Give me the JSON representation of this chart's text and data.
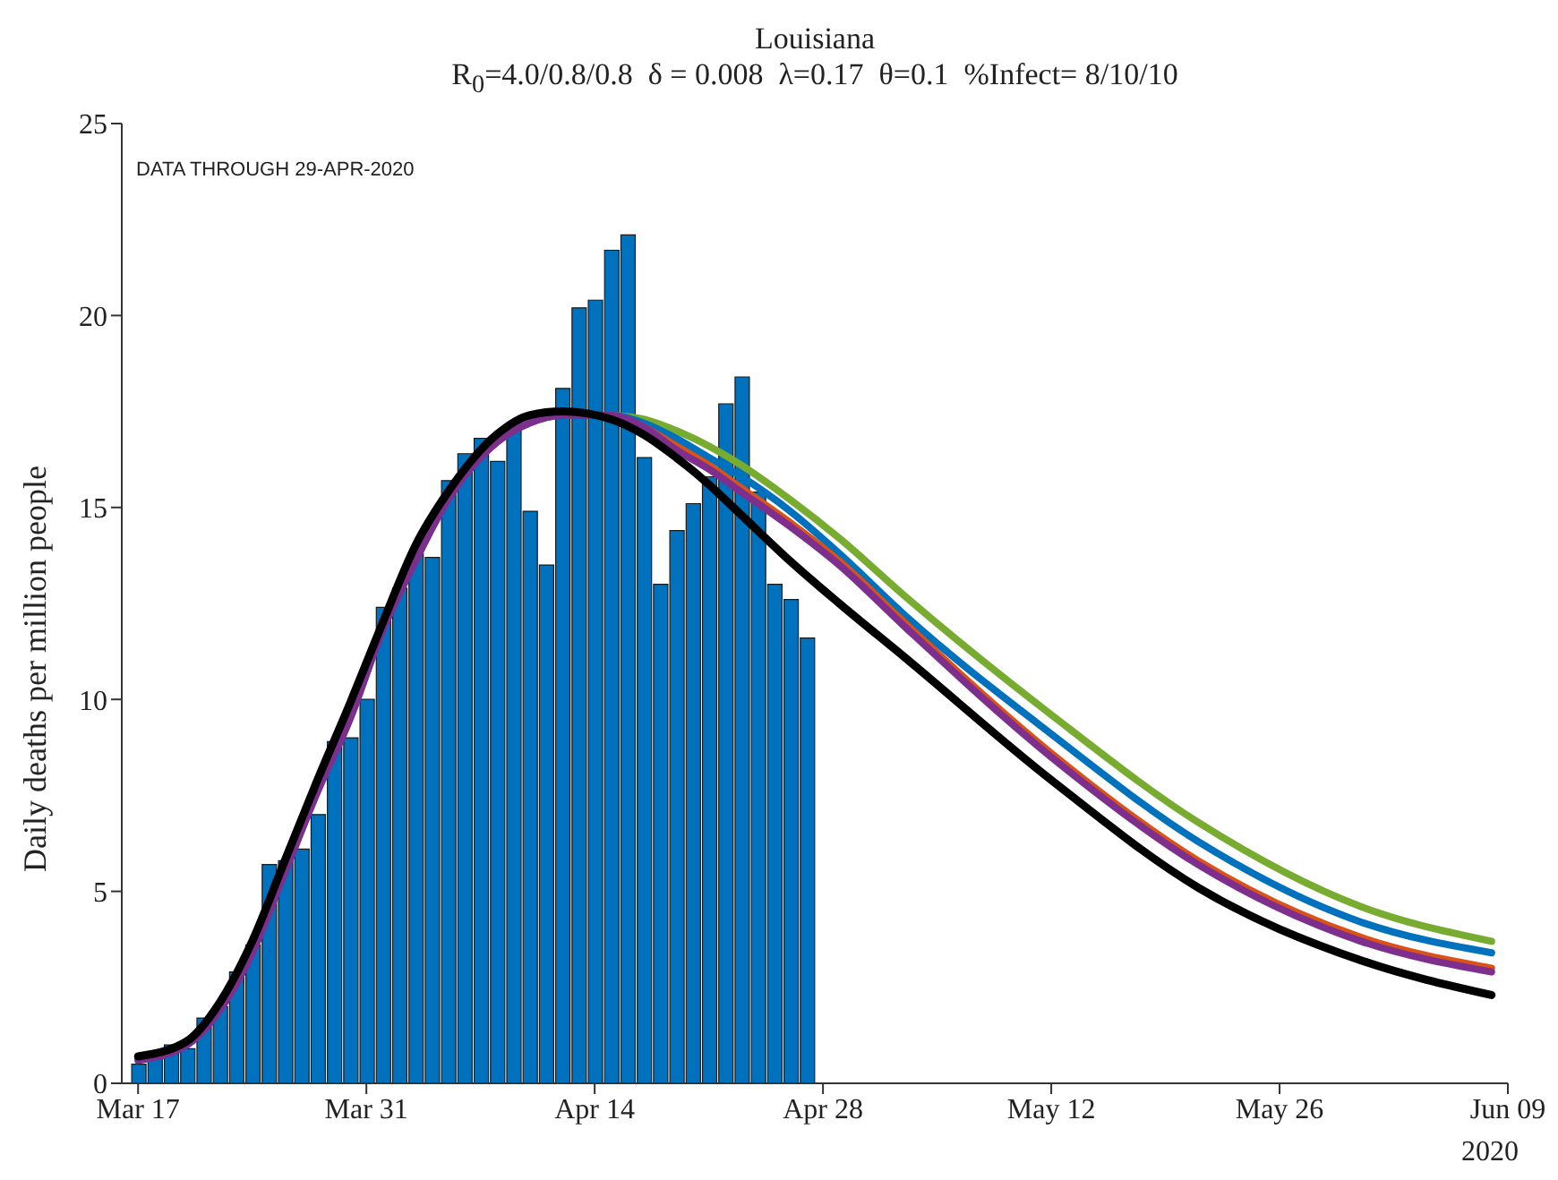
{
  "chart_data": {
    "type": "bar",
    "title": "Louisiana",
    "subtitle": "R$_{0}$=4.0/0.8/0.8  δ = 0.008  λ=0.17  θ=0.1  %Infect= 8/10/10",
    "ylabel": "Daily deaths per million people",
    "annotations": [
      "DATA THROUGH 29-APR-2020",
      "2020"
    ],
    "xlim": [
      "2020-03-16",
      "2020-06-09"
    ],
    "xticks": [
      {
        "value": "2020-03-17",
        "label": "Mar 17"
      },
      {
        "value": "2020-03-31",
        "label": "Mar 31"
      },
      {
        "value": "2020-04-14",
        "label": "Apr 14"
      },
      {
        "value": "2020-04-28",
        "label": "Apr 28"
      },
      {
        "value": "2020-05-12",
        "label": "May 12"
      },
      {
        "value": "2020-05-26",
        "label": "May 26"
      },
      {
        "value": "2020-06-09",
        "label": "Jun 09"
      }
    ],
    "ylim": [
      0,
      25
    ],
    "yticks": [
      0,
      5,
      10,
      15,
      20,
      25
    ],
    "grid": false,
    "legend": false,
    "series": [
      {
        "color": "#0072bd",
        "x": [
          "2020-03-17",
          "2020-03-18",
          "2020-03-19",
          "2020-03-20",
          "2020-03-21",
          "2020-03-22",
          "2020-03-23",
          "2020-03-24",
          "2020-03-25",
          "2020-03-26",
          "2020-03-27",
          "2020-03-28",
          "2020-03-29",
          "2020-03-30",
          "2020-03-31",
          "2020-04-01",
          "2020-04-02",
          "2020-04-03",
          "2020-04-04",
          "2020-04-05",
          "2020-04-06",
          "2020-04-07",
          "2020-04-08",
          "2020-04-09",
          "2020-04-10",
          "2020-04-11",
          "2020-04-12",
          "2020-04-13",
          "2020-04-14",
          "2020-04-15",
          "2020-04-16",
          "2020-04-17",
          "2020-04-18",
          "2020-04-19",
          "2020-04-20",
          "2020-04-21",
          "2020-04-22",
          "2020-04-23",
          "2020-04-24",
          "2020-04-25",
          "2020-04-26",
          "2020-04-27"
        ],
        "values": [
          0.5,
          0.7,
          1.0,
          0.9,
          1.7,
          2.0,
          2.9,
          3.6,
          5.7,
          5.8,
          6.1,
          7.0,
          8.9,
          9.0,
          10.0,
          12.4,
          12.9,
          13.8,
          13.7,
          15.7,
          16.4,
          16.8,
          16.2,
          17.0,
          14.9,
          13.5,
          18.1,
          20.2,
          20.4,
          21.7,
          22.1,
          16.3,
          13.0,
          14.4,
          15.1,
          15.8,
          17.7,
          18.4,
          15.4,
          13.0,
          12.6,
          11.6
        ]
      },
      {
        "type": "line",
        "color": "#77ac30",
        "x": [
          "2020-04-15",
          "2020-04-17",
          "2020-04-19",
          "2020-04-21",
          "2020-04-23",
          "2020-04-26",
          "2020-04-29",
          "2020-05-03",
          "2020-05-12",
          "2020-05-21",
          "2020-05-31",
          "2020-06-08"
        ],
        "values": [
          17.4,
          17.3,
          17.0,
          16.6,
          16.1,
          15.2,
          14.2,
          12.7,
          9.6,
          6.8,
          4.6,
          3.7
        ]
      },
      {
        "type": "line",
        "color": "#0072bd",
        "x": [
          "2020-03-17",
          "2020-03-20",
          "2020-03-22",
          "2020-03-24",
          "2020-03-26",
          "2020-03-28",
          "2020-03-30",
          "2020-04-01",
          "2020-04-03",
          "2020-04-05",
          "2020-04-08",
          "2020-04-10",
          "2020-04-12",
          "2020-04-15",
          "2020-04-17",
          "2020-04-19",
          "2020-04-21",
          "2020-04-23",
          "2020-04-26",
          "2020-04-29",
          "2020-05-03",
          "2020-05-12",
          "2020-05-21",
          "2020-05-31",
          "2020-06-08"
        ],
        "values": [
          0.6,
          1.0,
          1.9,
          3.4,
          5.5,
          7.6,
          9.5,
          11.8,
          13.6,
          15.2,
          16.7,
          17.2,
          17.4,
          17.4,
          17.2,
          16.8,
          16.3,
          15.8,
          14.9,
          13.8,
          12.2,
          9.1,
          6.3,
          4.2,
          3.4
        ]
      },
      {
        "type": "line",
        "color": "#d95319",
        "x": [
          "2020-04-15",
          "2020-04-17",
          "2020-04-19",
          "2020-04-21",
          "2020-04-23",
          "2020-04-26",
          "2020-04-29",
          "2020-05-03",
          "2020-05-12",
          "2020-05-21",
          "2020-05-31",
          "2020-06-08"
        ],
        "values": [
          17.4,
          17.1,
          16.6,
          16.1,
          15.5,
          14.6,
          13.6,
          12.0,
          8.6,
          5.8,
          3.8,
          3.0
        ]
      },
      {
        "type": "line",
        "color": "#7e2f8e",
        "x": [
          "2020-03-17",
          "2020-03-20",
          "2020-03-22",
          "2020-03-24",
          "2020-03-26",
          "2020-03-28",
          "2020-03-30",
          "2020-04-01",
          "2020-04-03",
          "2020-04-05",
          "2020-04-08",
          "2020-04-10",
          "2020-04-12",
          "2020-04-15",
          "2020-04-17",
          "2020-04-19",
          "2020-04-21",
          "2020-04-23",
          "2020-04-26",
          "2020-04-29",
          "2020-05-03",
          "2020-05-12",
          "2020-05-21",
          "2020-05-31",
          "2020-06-08"
        ],
        "values": [
          0.6,
          1.0,
          1.9,
          3.4,
          5.5,
          7.6,
          9.5,
          11.8,
          13.6,
          15.2,
          16.7,
          17.2,
          17.4,
          17.4,
          17.1,
          16.5,
          16.0,
          15.4,
          14.5,
          13.5,
          11.9,
          8.5,
          5.7,
          3.7,
          2.9
        ]
      },
      {
        "type": "line",
        "color": "#000000",
        "x": [
          "2020-03-17",
          "2020-03-20",
          "2020-03-22",
          "2020-03-24",
          "2020-03-26",
          "2020-03-28",
          "2020-03-30",
          "2020-04-01",
          "2020-04-03",
          "2020-04-05",
          "2020-04-08",
          "2020-04-10",
          "2020-04-12",
          "2020-04-15",
          "2020-04-17",
          "2020-04-19",
          "2020-04-21",
          "2020-04-23",
          "2020-04-26",
          "2020-04-29",
          "2020-05-03",
          "2020-05-12",
          "2020-05-21",
          "2020-05-31",
          "2020-06-08"
        ],
        "values": [
          0.7,
          1.1,
          2.1,
          3.7,
          5.8,
          7.9,
          9.9,
          12.0,
          14.0,
          15.4,
          16.9,
          17.4,
          17.5,
          17.3,
          16.9,
          16.3,
          15.6,
          14.8,
          13.6,
          12.5,
          11.1,
          7.9,
          5.1,
          3.2,
          2.3
        ]
      }
    ]
  }
}
